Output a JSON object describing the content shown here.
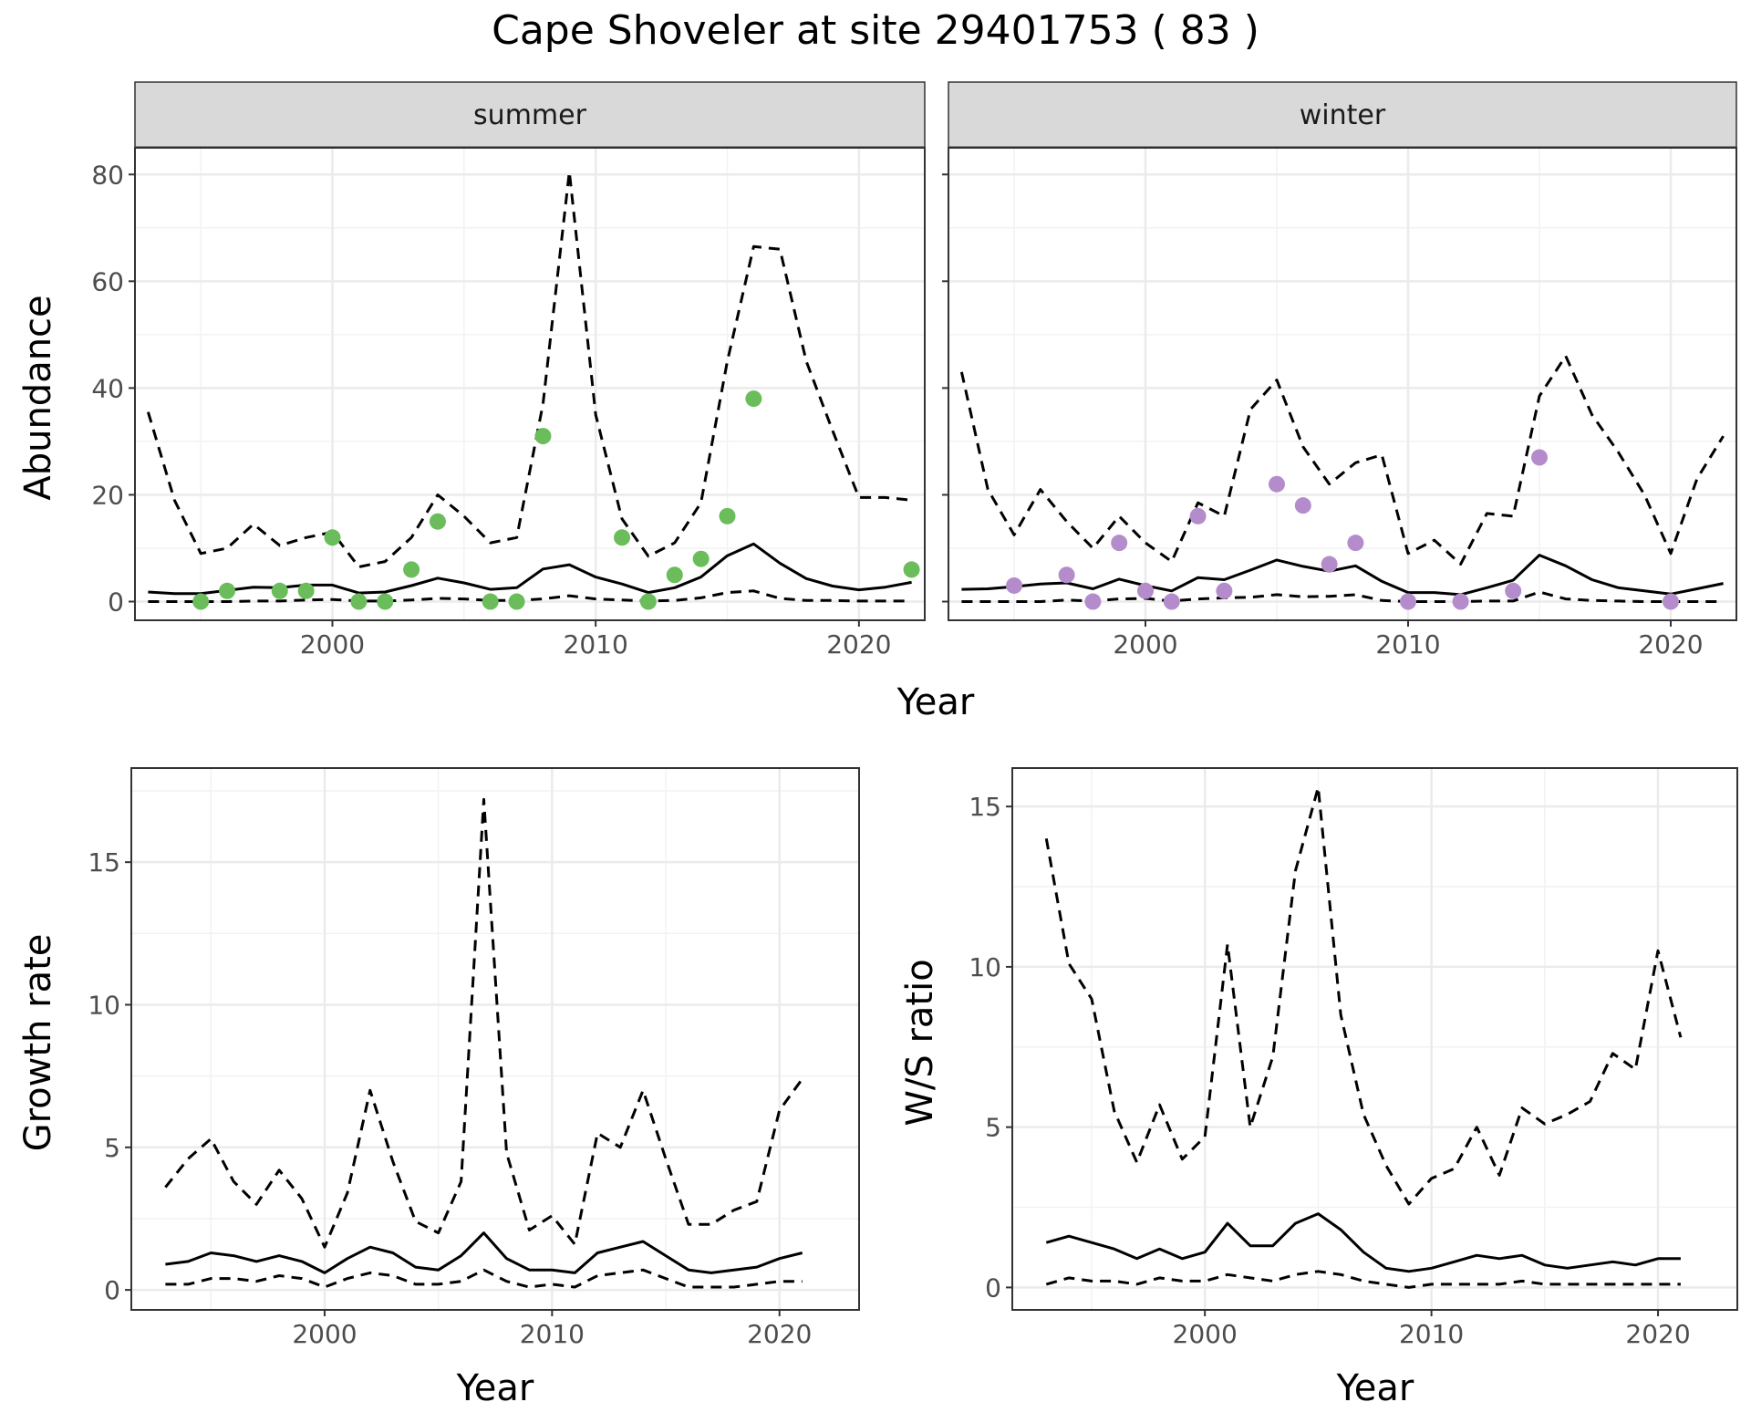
{
  "title": "Cape Shoveler at site 29401753 ( 83 )",
  "colors": {
    "summer_points": "#6abd5a",
    "winter_points": "#b48ccb",
    "line": "#000000",
    "strip_bg": "#d9d9d9",
    "grid": "#ebebeb"
  },
  "chart_data": [
    {
      "type": "line",
      "facet": "summer",
      "xlabel": "Year",
      "ylabel": "Abundance",
      "xlim": [
        1992.5,
        2022.5
      ],
      "ylim": [
        -3.5,
        85
      ],
      "xticks": [
        2000,
        2010,
        2020
      ],
      "yticks": [
        0,
        20,
        40,
        60,
        80
      ],
      "grid": true,
      "x": [
        1993,
        1994,
        1995,
        1996,
        1997,
        1998,
        1999,
        2000,
        2001,
        2002,
        2003,
        2004,
        2005,
        2006,
        2007,
        2008,
        2009,
        2010,
        2011,
        2012,
        2013,
        2014,
        2015,
        2016,
        2017,
        2018,
        2019,
        2020,
        2021,
        2022
      ],
      "series": [
        {
          "style": "dashed",
          "values": [
            35.5,
            19,
            9,
            10,
            14.5,
            10.5,
            12,
            13,
            6.5,
            7.5,
            12,
            20,
            16,
            11,
            12,
            37,
            80.5,
            35,
            15.5,
            8.5,
            11,
            18.5,
            45,
            66.5,
            66,
            45,
            32,
            19.5,
            19.5,
            19
          ]
        },
        {
          "style": "solid",
          "values": [
            1.8,
            1.5,
            1.5,
            2.1,
            2.7,
            2.6,
            3.1,
            3.1,
            1.6,
            1.8,
            3,
            4.4,
            3.5,
            2.3,
            2.6,
            6.1,
            6.9,
            4.6,
            3.3,
            1.7,
            2.6,
            4.6,
            8.6,
            10.8,
            7.2,
            4.3,
            2.9,
            2.2,
            2.7,
            3.6
          ]
        },
        {
          "style": "dashed",
          "values": [
            0,
            0,
            0,
            0,
            0.1,
            0.1,
            0.3,
            0.4,
            0.1,
            0.1,
            0.3,
            0.6,
            0.5,
            0.2,
            0.2,
            0.5,
            1.1,
            0.5,
            0.3,
            0.1,
            0.2,
            0.7,
            1.7,
            2,
            0.6,
            0.2,
            0.2,
            0.1,
            0.1,
            0.1
          ]
        }
      ],
      "points": {
        "x": [
          1995,
          1996,
          1998,
          1999,
          2000,
          2001,
          2002,
          2003,
          2004,
          2006,
          2007,
          2008,
          2011,
          2012,
          2013,
          2014,
          2015,
          2016,
          2022
        ],
        "y": [
          0,
          2,
          2,
          2,
          12,
          0,
          0,
          6,
          15,
          0,
          0,
          31,
          12,
          0,
          5,
          8,
          16,
          38,
          6
        ]
      }
    },
    {
      "type": "line",
      "facet": "winter",
      "xlabel": "Year",
      "ylabel": "Abundance",
      "xlim": [
        1992.5,
        2022.5
      ],
      "ylim": [
        -3.5,
        85
      ],
      "xticks": [
        2000,
        2010,
        2020
      ],
      "yticks": [
        0,
        20,
        40,
        60,
        80
      ],
      "grid": true,
      "x": [
        1993,
        1994,
        1995,
        1996,
        1997,
        1998,
        1999,
        2000,
        2001,
        2002,
        2003,
        2004,
        2005,
        2006,
        2007,
        2008,
        2009,
        2010,
        2011,
        2012,
        2013,
        2014,
        2015,
        2016,
        2017,
        2018,
        2019,
        2020,
        2021,
        2022
      ],
      "series": [
        {
          "style": "dashed",
          "values": [
            43,
            21,
            12.5,
            21,
            15,
            10,
            16,
            11,
            7.5,
            18.5,
            16,
            36,
            41.5,
            29,
            22,
            26,
            27.5,
            9,
            11.5,
            7,
            16.5,
            16,
            38.5,
            46,
            35,
            28,
            20,
            9,
            23,
            31
          ]
        },
        {
          "style": "solid",
          "values": [
            2.3,
            2.4,
            2.8,
            3.3,
            3.5,
            2.4,
            4.2,
            3,
            2,
            4.5,
            4.1,
            5.9,
            7.8,
            6.6,
            5.7,
            6.7,
            3.8,
            1.7,
            1.7,
            1.3,
            2.6,
            4,
            8.7,
            6.7,
            4.1,
            2.6,
            2,
            1.4,
            2.4,
            3.4
          ]
        },
        {
          "style": "dashed",
          "values": [
            0,
            0,
            0,
            0,
            0.3,
            0.1,
            0.5,
            0.6,
            0.1,
            0.5,
            0.7,
            0.8,
            1.3,
            0.9,
            1,
            1.3,
            0.2,
            0,
            0,
            0,
            0.1,
            0.1,
            1.8,
            0.5,
            0.2,
            0.1,
            0,
            0,
            0,
            0
          ]
        }
      ],
      "points": {
        "x": [
          1995,
          1997,
          1998,
          1999,
          2000,
          2001,
          2002,
          2003,
          2005,
          2006,
          2007,
          2008,
          2010,
          2012,
          2014,
          2015,
          2020
        ],
        "y": [
          3,
          5,
          0,
          11,
          2,
          0,
          16,
          2,
          22,
          18,
          7,
          11,
          0,
          0,
          2,
          27,
          0
        ]
      }
    },
    {
      "type": "line",
      "facet": "",
      "xlabel": "Year",
      "ylabel": "Growth rate",
      "xlim": [
        1991.5,
        2023.5
      ],
      "ylim": [
        -0.7,
        18.3
      ],
      "xticks": [
        2000,
        2010,
        2020
      ],
      "yticks": [
        0,
        5,
        10,
        15
      ],
      "grid": true,
      "x": [
        1993,
        1994,
        1995,
        1996,
        1997,
        1998,
        1999,
        2000,
        2001,
        2002,
        2003,
        2004,
        2005,
        2006,
        2007,
        2008,
        2009,
        2010,
        2011,
        2012,
        2013,
        2014,
        2015,
        2016,
        2017,
        2018,
        2019,
        2020,
        2021
      ],
      "series": [
        {
          "style": "dashed",
          "values": [
            3.6,
            4.6,
            5.3,
            3.8,
            3.0,
            4.2,
            3.2,
            1.5,
            3.4,
            7.0,
            4.5,
            2.4,
            2.0,
            3.8,
            17.2,
            4.8,
            2.1,
            2.6,
            1.6,
            5.5,
            5.0,
            7.0,
            4.6,
            2.3,
            2.3,
            2.8,
            3.1,
            6.3,
            7.4
          ]
        },
        {
          "style": "solid",
          "values": [
            0.9,
            1.0,
            1.3,
            1.2,
            1.0,
            1.2,
            1.0,
            0.6,
            1.1,
            1.5,
            1.3,
            0.8,
            0.7,
            1.2,
            2.0,
            1.1,
            0.7,
            0.7,
            0.6,
            1.3,
            1.5,
            1.7,
            1.2,
            0.7,
            0.6,
            0.7,
            0.8,
            1.1,
            1.3
          ]
        },
        {
          "style": "dashed",
          "values": [
            0.2,
            0.2,
            0.4,
            0.4,
            0.3,
            0.5,
            0.4,
            0.1,
            0.4,
            0.6,
            0.5,
            0.2,
            0.2,
            0.3,
            0.7,
            0.3,
            0.1,
            0.2,
            0.1,
            0.5,
            0.6,
            0.7,
            0.4,
            0.1,
            0.1,
            0.1,
            0.2,
            0.3,
            0.3
          ]
        }
      ]
    },
    {
      "type": "line",
      "facet": "",
      "xlabel": "Year",
      "ylabel": "W/S ratio",
      "xlim": [
        1991.5,
        2023.5
      ],
      "ylim": [
        -0.7,
        16.2
      ],
      "xticks": [
        2000,
        2010,
        2020
      ],
      "yticks": [
        0,
        5,
        10,
        15
      ],
      "grid": true,
      "x": [
        1993,
        1994,
        1995,
        1996,
        1997,
        1998,
        1999,
        2000,
        2001,
        2002,
        2003,
        2004,
        2005,
        2006,
        2007,
        2008,
        2009,
        2010,
        2011,
        2012,
        2013,
        2014,
        2015,
        2016,
        2017,
        2018,
        2019,
        2020,
        2021
      ],
      "series": [
        {
          "style": "dashed",
          "values": [
            14.0,
            10.1,
            9.0,
            5.5,
            3.9,
            5.7,
            4.0,
            4.7,
            10.7,
            5.0,
            7.2,
            13.0,
            15.6,
            8.5,
            5.4,
            3.8,
            2.6,
            3.4,
            3.7,
            5.0,
            3.5,
            5.6,
            5.1,
            5.4,
            5.8,
            7.3,
            6.8,
            10.5,
            7.8
          ]
        },
        {
          "style": "solid",
          "values": [
            1.4,
            1.6,
            1.4,
            1.2,
            0.9,
            1.2,
            0.9,
            1.1,
            2.0,
            1.3,
            1.3,
            2.0,
            2.3,
            1.8,
            1.1,
            0.6,
            0.5,
            0.6,
            0.8,
            1.0,
            0.9,
            1.0,
            0.7,
            0.6,
            0.7,
            0.8,
            0.7,
            0.9,
            0.9
          ]
        },
        {
          "style": "dashed",
          "values": [
            0.1,
            0.3,
            0.2,
            0.2,
            0.1,
            0.3,
            0.2,
            0.2,
            0.4,
            0.3,
            0.2,
            0.4,
            0.5,
            0.4,
            0.2,
            0.1,
            0.0,
            0.1,
            0.1,
            0.1,
            0.1,
            0.2,
            0.1,
            0.1,
            0.1,
            0.1,
            0.1,
            0.1,
            0.1
          ]
        }
      ]
    }
  ]
}
